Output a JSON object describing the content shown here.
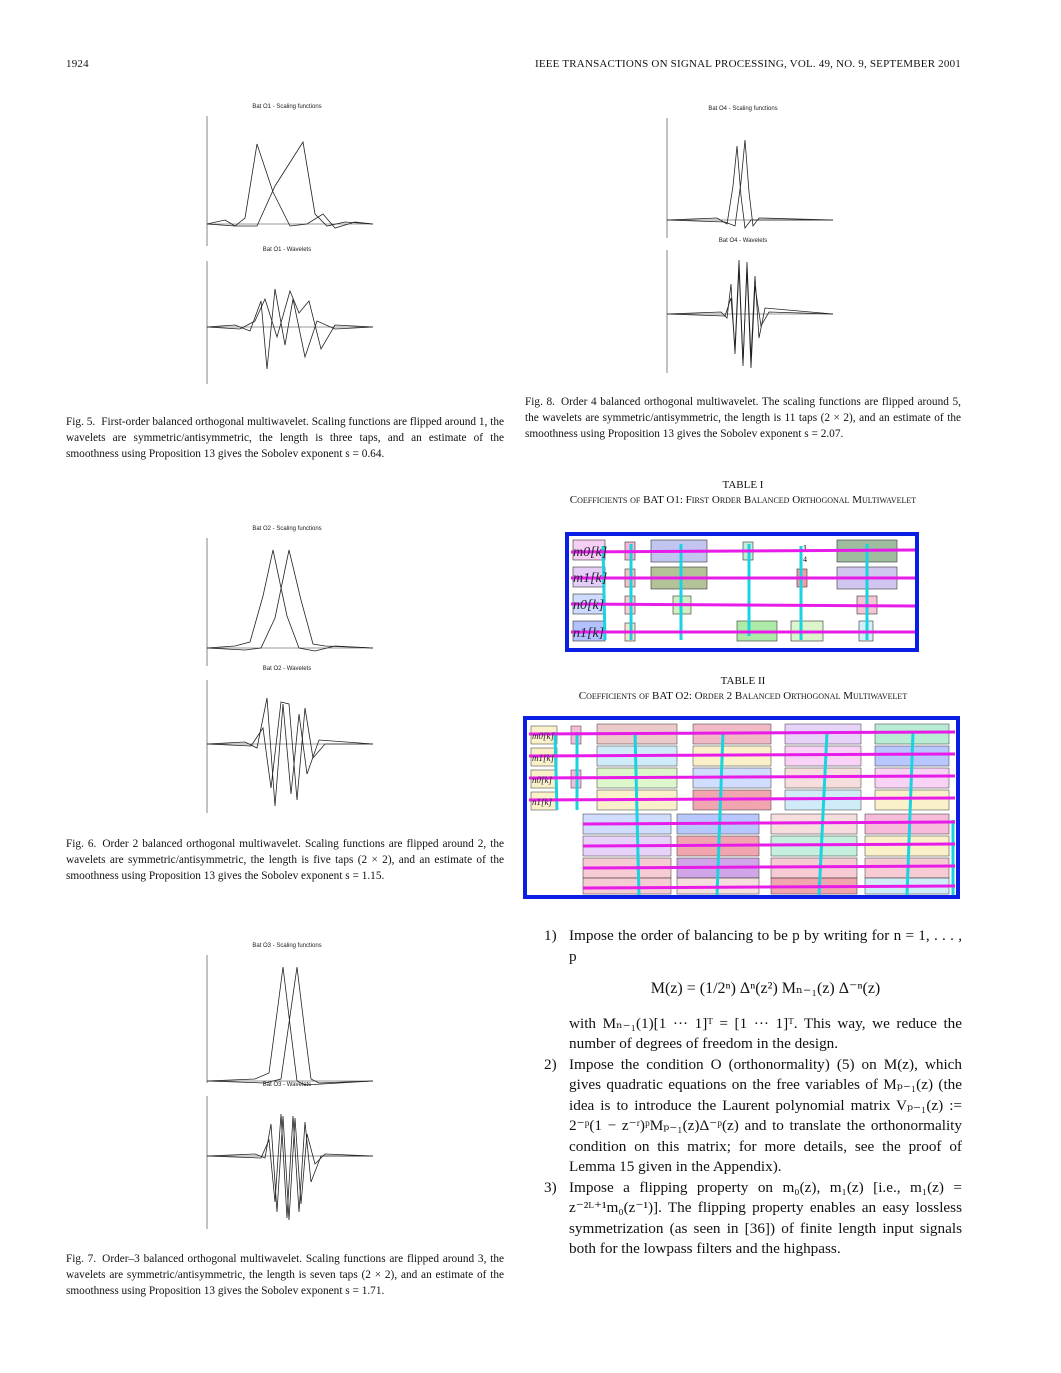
{
  "header": {
    "page_number": "1924",
    "journal": "IEEE TRANSACTIONS ON SIGNAL PROCESSING, VOL. 49, NO. 9, SEPTEMBER 2001"
  },
  "figures": {
    "fig5": {
      "top_title": "Bat O1 - Scaling functions",
      "bottom_title": "Bat O1 - Wavelets",
      "caption_label": "Fig. 5.",
      "caption_text": "First-order balanced orthogonal multiwavelet. Scaling functions are flipped around 1, the wavelets are symmetric/antisymmetric, the length is three taps, and an estimate of the smoothness using Proposition 13 gives the Sobolev exponent s = 0.64."
    },
    "fig6": {
      "top_title": "Bat O2 - Scaling functions",
      "bottom_title": "Bat O2 - Wavelets",
      "caption_label": "Fig. 6.",
      "caption_text": "Order 2 balanced orthogonal multiwavelet. Scaling functions are flipped around 2, the wavelets are symmetric/antisymmetric, the length is five taps (2 × 2), and an estimate of the smoothness using Proposition 13 gives the Sobolev exponent s = 1.15."
    },
    "fig7": {
      "top_title": "Bat O3 - Scaling functions",
      "bottom_title": "Bat O3 - Wavelets",
      "caption_label": "Fig. 7.",
      "caption_text": "Order–3 balanced orthogonal multiwavelet. Scaling functions are flipped around 3, the wavelets are symmetric/antisymmetric, the length is seven taps (2 × 2), and an estimate of the smoothness using Proposition 13 gives the Sobolev exponent s = 1.71."
    },
    "fig8": {
      "top_title": "Bat O4 - Scaling functions",
      "bottom_title": "Bat O4 - Wavelets",
      "caption_label": "Fig. 8.",
      "caption_text": "Order 4 balanced orthogonal multiwavelet. The scaling functions are flipped around 5, the wavelets are symmetric/antisymmetric, the length is 11 taps (2 × 2), and an estimate of the smoothness using Proposition 13 gives the Sobolev exponent s = 2.07."
    }
  },
  "tables": {
    "table1": {
      "number": "TABLE I",
      "title": "Coefficients of BAT O1: First Order Balanced Orthogonal Multiwavelet",
      "rows": [
        "m0[k]",
        "m1[k]",
        "n0[k]",
        "n1[k]"
      ]
    },
    "table2": {
      "number": "TABLE II",
      "title": "Coefficients of BAT O2: Order 2 Balanced Orthogonal Multiwavelet",
      "rows": [
        "m0[k]",
        "m1[k]",
        "n0[k]",
        "n1[k]"
      ]
    }
  },
  "body": {
    "item1_num": "1)",
    "item1_text": "Impose the order of balancing to be p by writing for n = 1, . . . , p",
    "equation": "M(z) = (1/2ⁿ) Δⁿ(z²) Mₙ₋₁(z) Δ⁻ⁿ(z)",
    "item1_cont": "with Mₙ₋₁(1)[1 ··· 1]ᵀ = [1 ··· 1]ᵀ. This way, we reduce the number of degrees of freedom in the design.",
    "item2_num": "2)",
    "item2_text": "Impose the condition O (orthonormality) (5) on M(z), which gives quadratic equations on the free variables of Mₚ₋₁(z) (the idea is to introduce the Laurent polynomial matrix Vₚ₋₁(z) := 2⁻ᵖ(1 − z⁻ʳ)ᵖMₚ₋₁(z)Δ⁻ᵖ(z) and to translate the orthonormality condition on this matrix; for more details, see the proof of Lemma 15 given in the Appendix).",
    "item3_num": "3)",
    "item3_text": "Impose a flipping property on m₀(z), m₁(z) [i.e., m₁(z) = z⁻²ᴸ⁺¹m₀(z⁻¹)]. The flipping property enables an easy lossless symmetrization (as seen in [36]) of finite length input signals both for the lowpass filters and the highpass."
  },
  "colors": {
    "table_border": "#0a1ee6",
    "row_line": "#e81ce8",
    "col_line": "#19d3e0"
  }
}
